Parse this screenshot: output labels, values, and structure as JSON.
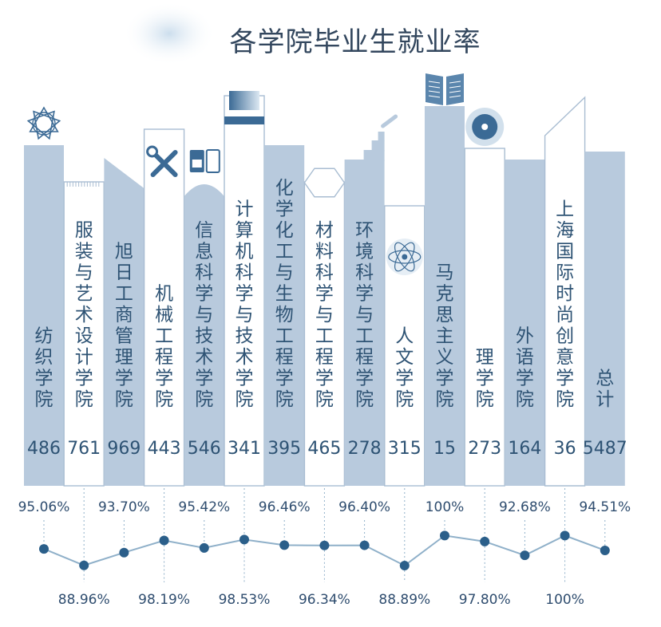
{
  "title": "各学院毕业生就业率",
  "colors": {
    "dark_bar": "#b8cadd",
    "light_bar": "#ffffff",
    "outline": "#a9bdd2",
    "text_dark": "#2e5374",
    "text_light": "#ffffff",
    "title": "#33475e",
    "line": "#8fb0c9",
    "dot": "#2b5f8a",
    "accent": "#3b6a95"
  },
  "chart_data": {
    "type": "bar+line",
    "categories": [
      "纺织学院",
      "服装与艺术设计学院",
      "旭日工商管理学院",
      "机械工程学院",
      "信息科学与技术学院",
      "计算机科学与技术学院",
      "化学化工与生物工程学院",
      "材料科学与工程学院",
      "环境科学与工程学院",
      "人文学院",
      "马克思主义学院",
      "理学院",
      "外语学院",
      "上海国际时尚创意学院",
      "总计"
    ],
    "series": [
      {
        "values": [
          486,
          761,
          969,
          443,
          546,
          341,
          395,
          465,
          278,
          315,
          15,
          273,
          164,
          36,
          5487
        ]
      },
      {
        "values": [
          95.06,
          88.96,
          93.7,
          98.19,
          95.42,
          98.53,
          96.46,
          96.34,
          96.4,
          88.89,
          100,
          97.8,
          92.68,
          100,
          94.51
        ]
      }
    ],
    "rate_labels": [
      "95.06%",
      "88.96%",
      "93.70%",
      "98.19%",
      "95.42%",
      "98.53%",
      "96.46%",
      "96.34%",
      "96.40%",
      "88.89%",
      "100%",
      "97.80%",
      "92.68%",
      "100%",
      "94.51%"
    ],
    "bar_styles": [
      "dark",
      "light",
      "dark",
      "light",
      "dark",
      "light",
      "dark",
      "light",
      "dark",
      "light",
      "dark",
      "light",
      "dark",
      "light",
      "dark"
    ],
    "rate_axis": [
      88,
      101
    ],
    "icons": [
      "molecule-ring-icon",
      "",
      "",
      "wrench-screwdriver-icon",
      "sd-card-icon",
      "monitor-icon",
      "",
      "hexagon-icon",
      "factory-chimney-icon",
      "atom-icon",
      "open-book-icon",
      "target-disc-icon",
      "",
      "",
      ""
    ]
  }
}
